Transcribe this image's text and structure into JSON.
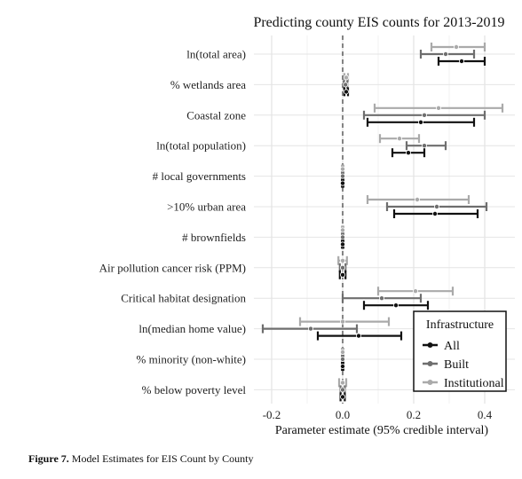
{
  "caption": {
    "label": "Figure 7.",
    "text": " Model Estimates for EIS Count by County"
  },
  "chart_data": {
    "type": "scatter",
    "title": "Predicting county EIS counts for 2013-2019",
    "xlabel": "Parameter estimate (95% credible interval)",
    "ylabel": "",
    "xlim": [
      -0.25,
      0.45
    ],
    "xticks": [
      -0.2,
      0.0,
      0.2,
      0.4
    ],
    "xtick_labels": [
      "-0.2",
      "0.0",
      "0.2",
      "0.4"
    ],
    "zero_line": "dashed",
    "grid": true,
    "categories": [
      "ln(total area)",
      "% wetlands area",
      "Coastal zone",
      "ln(total population)",
      "# local governments",
      ">10% urban area",
      "# brownfields",
      "Air pollution cancer risk (PPM)",
      "Critical habitat designation",
      "ln(median home value)",
      "% minority (non-white)",
      "% below poverty level"
    ],
    "legend": {
      "title": "Infrastructure",
      "position": "bottom-right"
    },
    "series": [
      {
        "name": "All",
        "color": "#111111",
        "estimate": [
          0.335,
          0.01,
          0.22,
          0.185,
          0.0,
          0.26,
          0.0,
          0.0,
          0.15,
          0.045,
          0.0,
          0.0
        ],
        "lower": [
          0.27,
          0.005,
          0.07,
          0.14,
          -0.002,
          0.145,
          -0.002,
          -0.008,
          0.06,
          -0.07,
          -0.002,
          -0.006
        ],
        "upper": [
          0.4,
          0.015,
          0.37,
          0.23,
          0.002,
          0.38,
          0.002,
          0.008,
          0.24,
          0.165,
          0.002,
          0.006
        ]
      },
      {
        "name": "Built",
        "color": "#6e6e6e",
        "estimate": [
          0.29,
          0.008,
          0.23,
          0.23,
          0.0,
          0.265,
          0.0,
          0.0,
          0.11,
          -0.09,
          0.0,
          0.0
        ],
        "lower": [
          0.22,
          0.003,
          0.06,
          0.18,
          -0.002,
          0.125,
          -0.002,
          -0.008,
          0.0,
          -0.225,
          -0.002,
          -0.006
        ],
        "upper": [
          0.37,
          0.013,
          0.4,
          0.29,
          0.002,
          0.405,
          0.002,
          0.008,
          0.22,
          0.04,
          0.002,
          0.006
        ]
      },
      {
        "name": "Institutional",
        "color": "#aaaaaa",
        "estimate": [
          0.32,
          0.01,
          0.27,
          0.16,
          0.0,
          0.21,
          0.0,
          0.0,
          0.205,
          0.0,
          0.0,
          0.0
        ],
        "lower": [
          0.25,
          0.005,
          0.09,
          0.105,
          -0.002,
          0.07,
          -0.002,
          -0.012,
          0.1,
          -0.12,
          -0.002,
          -0.01
        ],
        "upper": [
          0.4,
          0.015,
          0.45,
          0.215,
          0.002,
          0.355,
          0.002,
          0.012,
          0.31,
          0.13,
          0.002,
          0.01
        ]
      }
    ]
  }
}
